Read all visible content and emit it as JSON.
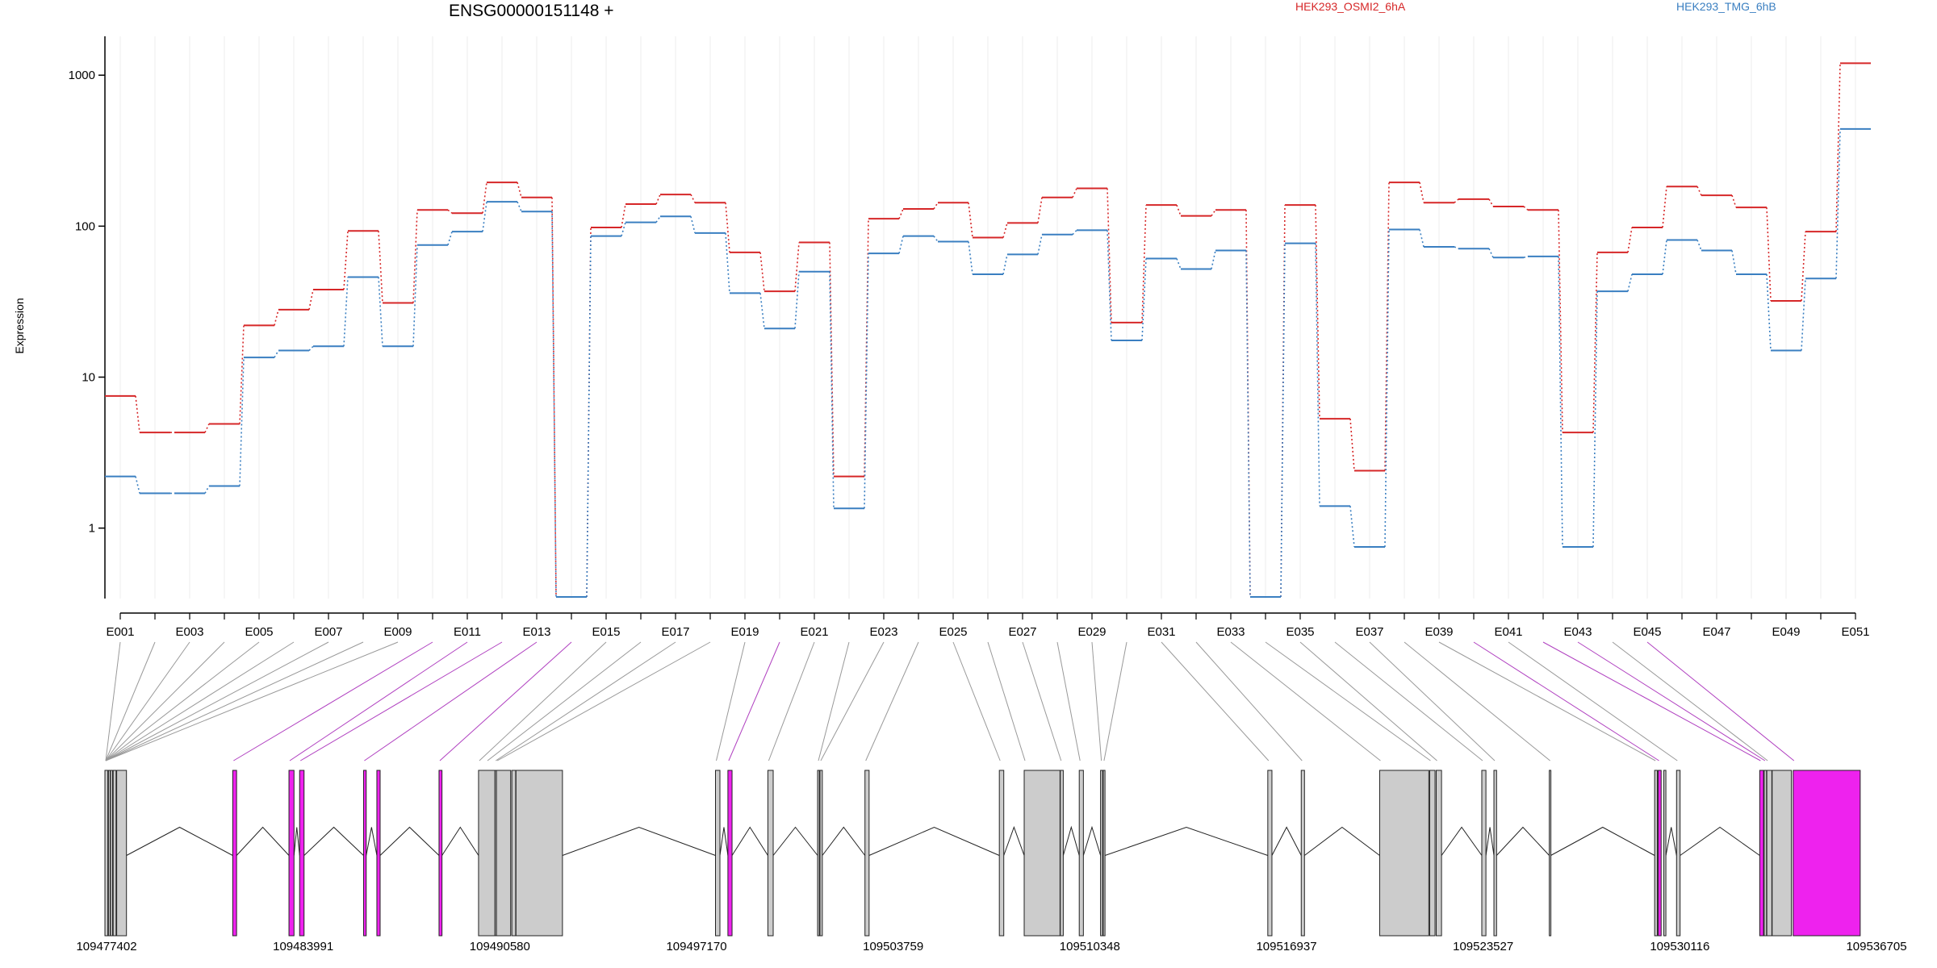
{
  "chart_data": {
    "type": "line",
    "title": "ENSG00000151148 +",
    "ylabel": "Expression",
    "yscale": "log",
    "ylim": [
      0.35,
      1600
    ],
    "yticks": [
      1,
      10,
      100,
      1000
    ],
    "ytick_labels": [
      "1",
      "10",
      "100",
      "1000"
    ],
    "categories": [
      "E001",
      "E002",
      "E003",
      "E004",
      "E005",
      "E006",
      "E007",
      "E008",
      "E009",
      "E010",
      "E011",
      "E012",
      "E013",
      "E014",
      "E015",
      "E016",
      "E017",
      "E018",
      "E019",
      "E020",
      "E021",
      "E022",
      "E023",
      "E024",
      "E025",
      "E026",
      "E027",
      "E028",
      "E029",
      "E030",
      "E031",
      "E032",
      "E033",
      "E034",
      "E035",
      "E036",
      "E037",
      "E038",
      "E039",
      "E040",
      "E041",
      "E042",
      "E043",
      "E044",
      "E045",
      "E046",
      "E047",
      "E048",
      "E049",
      "E050",
      "E051"
    ],
    "series": [
      {
        "name": "HEK293_OSMI2_6hA",
        "color": "#d62728",
        "values": [
          7.5,
          4.3,
          4.3,
          4.9,
          22,
          28,
          38,
          93,
          31,
          128,
          122,
          195,
          155,
          0.35,
          98,
          140,
          162,
          143,
          67,
          37,
          78,
          2.2,
          112,
          130,
          143,
          84,
          105,
          155,
          178,
          23,
          138,
          117,
          128,
          0.35,
          138,
          5.3,
          2.4,
          195,
          143,
          151,
          135,
          128,
          4.3,
          67,
          98,
          183,
          160,
          133,
          32,
          92,
          1200
        ]
      },
      {
        "name": "HEK293_TMG_6hB",
        "color": "#3a7fc1",
        "values": [
          2.2,
          1.7,
          1.7,
          1.9,
          13.5,
          15,
          16,
          46,
          16,
          75,
          92,
          145,
          125,
          0.35,
          86,
          106,
          116,
          90,
          36,
          21,
          50,
          1.35,
          66,
          86,
          79,
          48,
          65,
          88,
          94,
          17.5,
          61,
          52,
          69,
          0.35,
          77,
          1.4,
          0.75,
          95,
          73,
          71,
          62,
          63,
          0.75,
          37,
          48,
          81,
          69,
          48,
          15,
          45,
          440
        ]
      }
    ],
    "xtick_labels": [
      "E001",
      "E003",
      "E005",
      "E007",
      "E009",
      "E011",
      "E013",
      "E015",
      "E017",
      "E019",
      "E021",
      "E023",
      "E025",
      "E027",
      "E029",
      "E031",
      "E033",
      "E035",
      "E037",
      "E039",
      "E041",
      "E043",
      "E045",
      "E047",
      "E049",
      "E051"
    ],
    "genomic_ticks": [
      "109477402",
      "109483991",
      "109490580",
      "109497170",
      "109503759",
      "109510348",
      "109516937",
      "109523527",
      "109530116",
      "109536705"
    ],
    "genomic_range": [
      109477402,
      109537200
    ],
    "exon_blocks": [
      {
        "start": 109477402,
        "end": 109477500,
        "color": "#cccccc"
      },
      {
        "start": 109477520,
        "end": 109477580,
        "color": "#cccccc"
      },
      {
        "start": 109477590,
        "end": 109477660,
        "color": "#cccccc"
      },
      {
        "start": 109477680,
        "end": 109477780,
        "color": "#cccccc"
      },
      {
        "start": 109477800,
        "end": 109478130,
        "color": "#cccccc"
      },
      {
        "start": 109481720,
        "end": 109481850,
        "color": "#ee22ee"
      },
      {
        "start": 109483620,
        "end": 109483790,
        "color": "#ee22ee"
      },
      {
        "start": 109483980,
        "end": 109484130,
        "color": "#ee22ee"
      },
      {
        "start": 109486140,
        "end": 109486230,
        "color": "#ee22ee"
      },
      {
        "start": 109486590,
        "end": 109486700,
        "color": "#ee22ee"
      },
      {
        "start": 109488690,
        "end": 109488790,
        "color": "#ee22ee"
      },
      {
        "start": 109490025,
        "end": 109490580,
        "color": "#cccccc"
      },
      {
        "start": 109490580,
        "end": 109490620,
        "color": "#cccccc"
      },
      {
        "start": 109490630,
        "end": 109491110,
        "color": "#cccccc"
      },
      {
        "start": 109491150,
        "end": 109491280,
        "color": "#cccccc"
      },
      {
        "start": 109491290,
        "end": 109492860,
        "color": "#cccccc"
      },
      {
        "start": 109498030,
        "end": 109498180,
        "color": "#cccccc"
      },
      {
        "start": 109498450,
        "end": 109498590,
        "color": "#ee22ee"
      },
      {
        "start": 109499800,
        "end": 109499980,
        "color": "#cccccc"
      },
      {
        "start": 109501480,
        "end": 109501540,
        "color": "#cccccc"
      },
      {
        "start": 109501560,
        "end": 109501640,
        "color": "#cccccc"
      },
      {
        "start": 109503080,
        "end": 109503220,
        "color": "#cccccc"
      },
      {
        "start": 109507620,
        "end": 109507770,
        "color": "#cccccc"
      },
      {
        "start": 109508460,
        "end": 109509670,
        "color": "#cccccc"
      },
      {
        "start": 109509680,
        "end": 109509780,
        "color": "#cccccc"
      },
      {
        "start": 109510320,
        "end": 109510460,
        "color": "#cccccc"
      },
      {
        "start": 109511040,
        "end": 109511110,
        "color": "#cccccc"
      },
      {
        "start": 109511130,
        "end": 109511190,
        "color": "#cccccc"
      },
      {
        "start": 109516690,
        "end": 109516830,
        "color": "#cccccc"
      },
      {
        "start": 109517820,
        "end": 109517930,
        "color": "#cccccc"
      },
      {
        "start": 109520470,
        "end": 109522130,
        "color": "#cccccc"
      },
      {
        "start": 109522160,
        "end": 109522340,
        "color": "#cccccc"
      },
      {
        "start": 109522380,
        "end": 109522560,
        "color": "#cccccc"
      },
      {
        "start": 109523920,
        "end": 109524060,
        "color": "#cccccc"
      },
      {
        "start": 109524330,
        "end": 109524420,
        "color": "#cccccc"
      },
      {
        "start": 109526200,
        "end": 109526250,
        "color": "#cccccc"
      },
      {
        "start": 109529760,
        "end": 109529850,
        "color": "#cccccc"
      },
      {
        "start": 109529880,
        "end": 109529980,
        "color": "#ee22ee"
      },
      {
        "start": 109530070,
        "end": 109530140,
        "color": "#cccccc"
      },
      {
        "start": 109530500,
        "end": 109530620,
        "color": "#cccccc"
      },
      {
        "start": 109533310,
        "end": 109533440,
        "color": "#ee22ee"
      },
      {
        "start": 109533460,
        "end": 109533540,
        "color": "#cccccc"
      },
      {
        "start": 109533550,
        "end": 109533720,
        "color": "#cccccc"
      },
      {
        "start": 109533730,
        "end": 109534380,
        "color": "#cccccc"
      },
      {
        "start": 109534440,
        "end": 109536705,
        "color": "#ee22ee"
      }
    ],
    "connectors": [
      {
        "exon": "E001",
        "pos": 109477402
      },
      {
        "exon": "E002",
        "pos": 109477402
      },
      {
        "exon": "E003",
        "pos": 109477402
      },
      {
        "exon": "E004",
        "pos": 109477402
      },
      {
        "exon": "E005",
        "pos": 109477402
      },
      {
        "exon": "E006",
        "pos": 109477402
      },
      {
        "exon": "E007",
        "pos": 109477402
      },
      {
        "exon": "E008",
        "pos": 109477402
      },
      {
        "exon": "E009",
        "pos": 109477402
      },
      {
        "exon": "E010",
        "pos": 109481720
      },
      {
        "exon": "E011",
        "pos": 109483620
      },
      {
        "exon": "E012",
        "pos": 109483980
      },
      {
        "exon": "E013",
        "pos": 109486140
      },
      {
        "exon": "E014",
        "pos": 109488690
      },
      {
        "exon": "E015",
        "pos": 109490025
      },
      {
        "exon": "E016",
        "pos": 109490300
      },
      {
        "exon": "E017",
        "pos": 109490580
      },
      {
        "exon": "E018",
        "pos": 109490630
      },
      {
        "exon": "E019",
        "pos": 109498030
      },
      {
        "exon": "E020",
        "pos": 109498450
      },
      {
        "exon": "E021",
        "pos": 109499800
      },
      {
        "exon": "E022",
        "pos": 109501480
      },
      {
        "exon": "E023",
        "pos": 109501560
      },
      {
        "exon": "E024",
        "pos": 109503080
      },
      {
        "exon": "E025",
        "pos": 109507620
      },
      {
        "exon": "E026",
        "pos": 109508460
      },
      {
        "exon": "E027",
        "pos": 109509680
      },
      {
        "exon": "E028",
        "pos": 109510320
      },
      {
        "exon": "E029",
        "pos": 109511040
      },
      {
        "exon": "E030",
        "pos": 109511130
      },
      {
        "exon": "E031",
        "pos": 109516690
      },
      {
        "exon": "E032",
        "pos": 109517820
      },
      {
        "exon": "E033",
        "pos": 109520470
      },
      {
        "exon": "E034",
        "pos": 109522160
      },
      {
        "exon": "E035",
        "pos": 109522380
      },
      {
        "exon": "E036",
        "pos": 109523920
      },
      {
        "exon": "E037",
        "pos": 109524330
      },
      {
        "exon": "E038",
        "pos": 109526200
      },
      {
        "exon": "E039",
        "pos": 109529760
      },
      {
        "exon": "E040",
        "pos": 109529880
      },
      {
        "exon": "E041",
        "pos": 109530500
      },
      {
        "exon": "E042",
        "pos": 109533310
      },
      {
        "exon": "E043",
        "pos": 109533460
      },
      {
        "exon": "E044",
        "pos": 109533550
      },
      {
        "exon": "E045",
        "pos": 109534440
      }
    ],
    "grid": true,
    "legend": "top"
  }
}
